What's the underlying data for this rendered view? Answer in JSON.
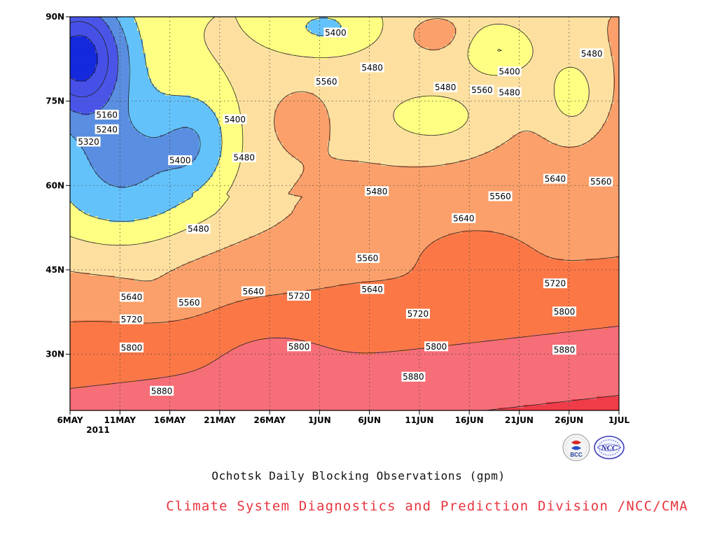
{
  "chart_data": {
    "type": "heatmap",
    "title": "Ochotsk Daily Blocking Observations (gpm)",
    "xlabel": "",
    "ylabel": "",
    "x_ticks": [
      "6MAY",
      "11MAY",
      "16MAY",
      "21MAY",
      "26MAY",
      "1JUN",
      "6JUN",
      "11JUN",
      "16JUN",
      "21JUN",
      "26JUN",
      "1JUL"
    ],
    "x_year_label": "2011",
    "x_range_days": [
      0,
      60
    ],
    "y_ticks": [
      "30N",
      "45N",
      "60N",
      "75N",
      "90N"
    ],
    "y_range_deg": [
      20,
      90
    ],
    "contour_levels": [
      5080,
      5160,
      5240,
      5320,
      5400,
      5480,
      5560,
      5640,
      5720,
      5800,
      5880,
      5960
    ],
    "contour_labels": [
      {
        "text": "5160",
        "day": 2.5,
        "lat": 72.6
      },
      {
        "text": "5240",
        "day": 2.5,
        "lat": 70.0
      },
      {
        "text": "5320",
        "day": 0.5,
        "lat": 67.8
      },
      {
        "text": "5400",
        "day": 10.5,
        "lat": 64.5
      },
      {
        "text": "5400",
        "day": 16.5,
        "lat": 71.8
      },
      {
        "text": "5400",
        "day": 27.5,
        "lat": 87.2
      },
      {
        "text": "5400",
        "day": 46.5,
        "lat": 80.3
      },
      {
        "text": "5480",
        "day": 12.5,
        "lat": 52.3
      },
      {
        "text": "5480",
        "day": 17.5,
        "lat": 65.0
      },
      {
        "text": "5480",
        "day": 31.5,
        "lat": 81.0
      },
      {
        "text": "5480",
        "day": 32.0,
        "lat": 59.0
      },
      {
        "text": "5480",
        "day": 39.5,
        "lat": 77.5
      },
      {
        "text": "5480",
        "day": 46.5,
        "lat": 76.6
      },
      {
        "text": "5480",
        "day": 55.5,
        "lat": 83.5
      },
      {
        "text": "5560",
        "day": 26.5,
        "lat": 78.5
      },
      {
        "text": "5560",
        "day": 11.5,
        "lat": 39.2
      },
      {
        "text": "5560",
        "day": 31.0,
        "lat": 47.1
      },
      {
        "text": "5560",
        "day": 43.5,
        "lat": 77.0
      },
      {
        "text": "5560",
        "day": 45.5,
        "lat": 58.1
      },
      {
        "text": "5560",
        "day": 56.5,
        "lat": 60.7
      },
      {
        "text": "5640",
        "day": 5.2,
        "lat": 40.2
      },
      {
        "text": "5640",
        "day": 18.5,
        "lat": 41.2
      },
      {
        "text": "5640",
        "day": 31.5,
        "lat": 41.6
      },
      {
        "text": "5640",
        "day": 41.5,
        "lat": 54.2
      },
      {
        "text": "5640",
        "day": 51.5,
        "lat": 61.2
      },
      {
        "text": "5720",
        "day": 5.2,
        "lat": 36.2
      },
      {
        "text": "5720",
        "day": 23.5,
        "lat": 40.4
      },
      {
        "text": "5720",
        "day": 36.5,
        "lat": 37.2
      },
      {
        "text": "5720",
        "day": 51.5,
        "lat": 42.6
      },
      {
        "text": "5800",
        "day": 5.2,
        "lat": 31.2
      },
      {
        "text": "5800",
        "day": 23.5,
        "lat": 31.4
      },
      {
        "text": "5800",
        "day": 38.5,
        "lat": 31.4
      },
      {
        "text": "5800",
        "day": 52.5,
        "lat": 37.6
      },
      {
        "text": "5880",
        "day": 8.5,
        "lat": 23.5
      },
      {
        "text": "5880",
        "day": 36.0,
        "lat": 26.0
      },
      {
        "text": "5880",
        "day": 52.5,
        "lat": 30.8
      }
    ],
    "fill_colors": {
      "lt5080": "#0c1f78",
      "c5080_5160": "#0c1f78",
      "c5160_5240": "#1428dc",
      "c5240_5320": "#4650e6",
      "c5320_5400": "#4a55e8",
      "c5400_5480": "#5a8ee0",
      "c5480_5560": "#64c2fa",
      "c5560_5640": "#fefe82",
      "c5640_5720": "#fde0a0",
      "c5720_5800": "#fba06a",
      "c5800_5880": "#fb7846",
      "c5880_5960": "#f66e78",
      "gt5960": "#f03c48"
    },
    "grid": true,
    "grid_style": "dotted"
  },
  "footer": "Climate System Diagnostics and Prediction Division /NCC/CMA",
  "logos": {
    "bcc": "BCC",
    "ncc": "NCC"
  }
}
